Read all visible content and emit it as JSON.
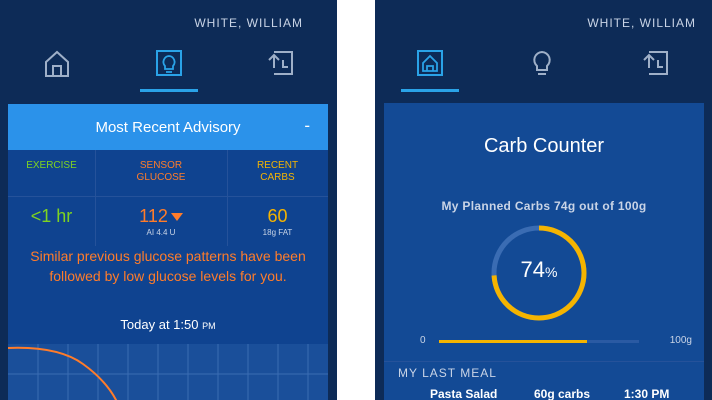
{
  "left": {
    "user_name": "WHITE, WILLIAM",
    "advisory": {
      "title": "Most Recent Advisory",
      "collapse_symbol": "-",
      "columns": [
        {
          "header": "EXERCISE",
          "value": "<1 hr",
          "sub": "",
          "color": "#7ed321"
        },
        {
          "header": "SENSOR\nGLUCOSE",
          "value": "112",
          "sub": "AI 4.4 U",
          "color": "#ff7c2a"
        },
        {
          "header": "RECENT\nCARBS",
          "value": "60",
          "sub": "18g FAT",
          "color": "#f5b400"
        }
      ],
      "message": "Similar previous glucose patterns have been followed by low glucose levels for you.",
      "time_label": "Today at 1:50",
      "time_ampm": "PM"
    }
  },
  "right": {
    "user_name": "WHITE, WILLIAM",
    "card_title": "Carb Counter",
    "planned_text": "My Planned Carbs 74g out of 100g",
    "percent": "74",
    "percent_symbol": "%",
    "progress_fraction": 0.74,
    "bar_min": "0",
    "bar_max": "100g",
    "last_meal_label": "MY LAST MEAL",
    "meal": {
      "name": "Pasta Salad",
      "carbs": "60g carbs",
      "time": "1:30 PM"
    }
  },
  "icons": [
    "home-icon",
    "lightbulb-icon",
    "history-icon"
  ],
  "colors": {
    "bg": "#0d2b57",
    "accent": "#2aa3e8",
    "orange": "#ff7c2a",
    "yellow": "#f5b400",
    "green": "#7ed321"
  }
}
